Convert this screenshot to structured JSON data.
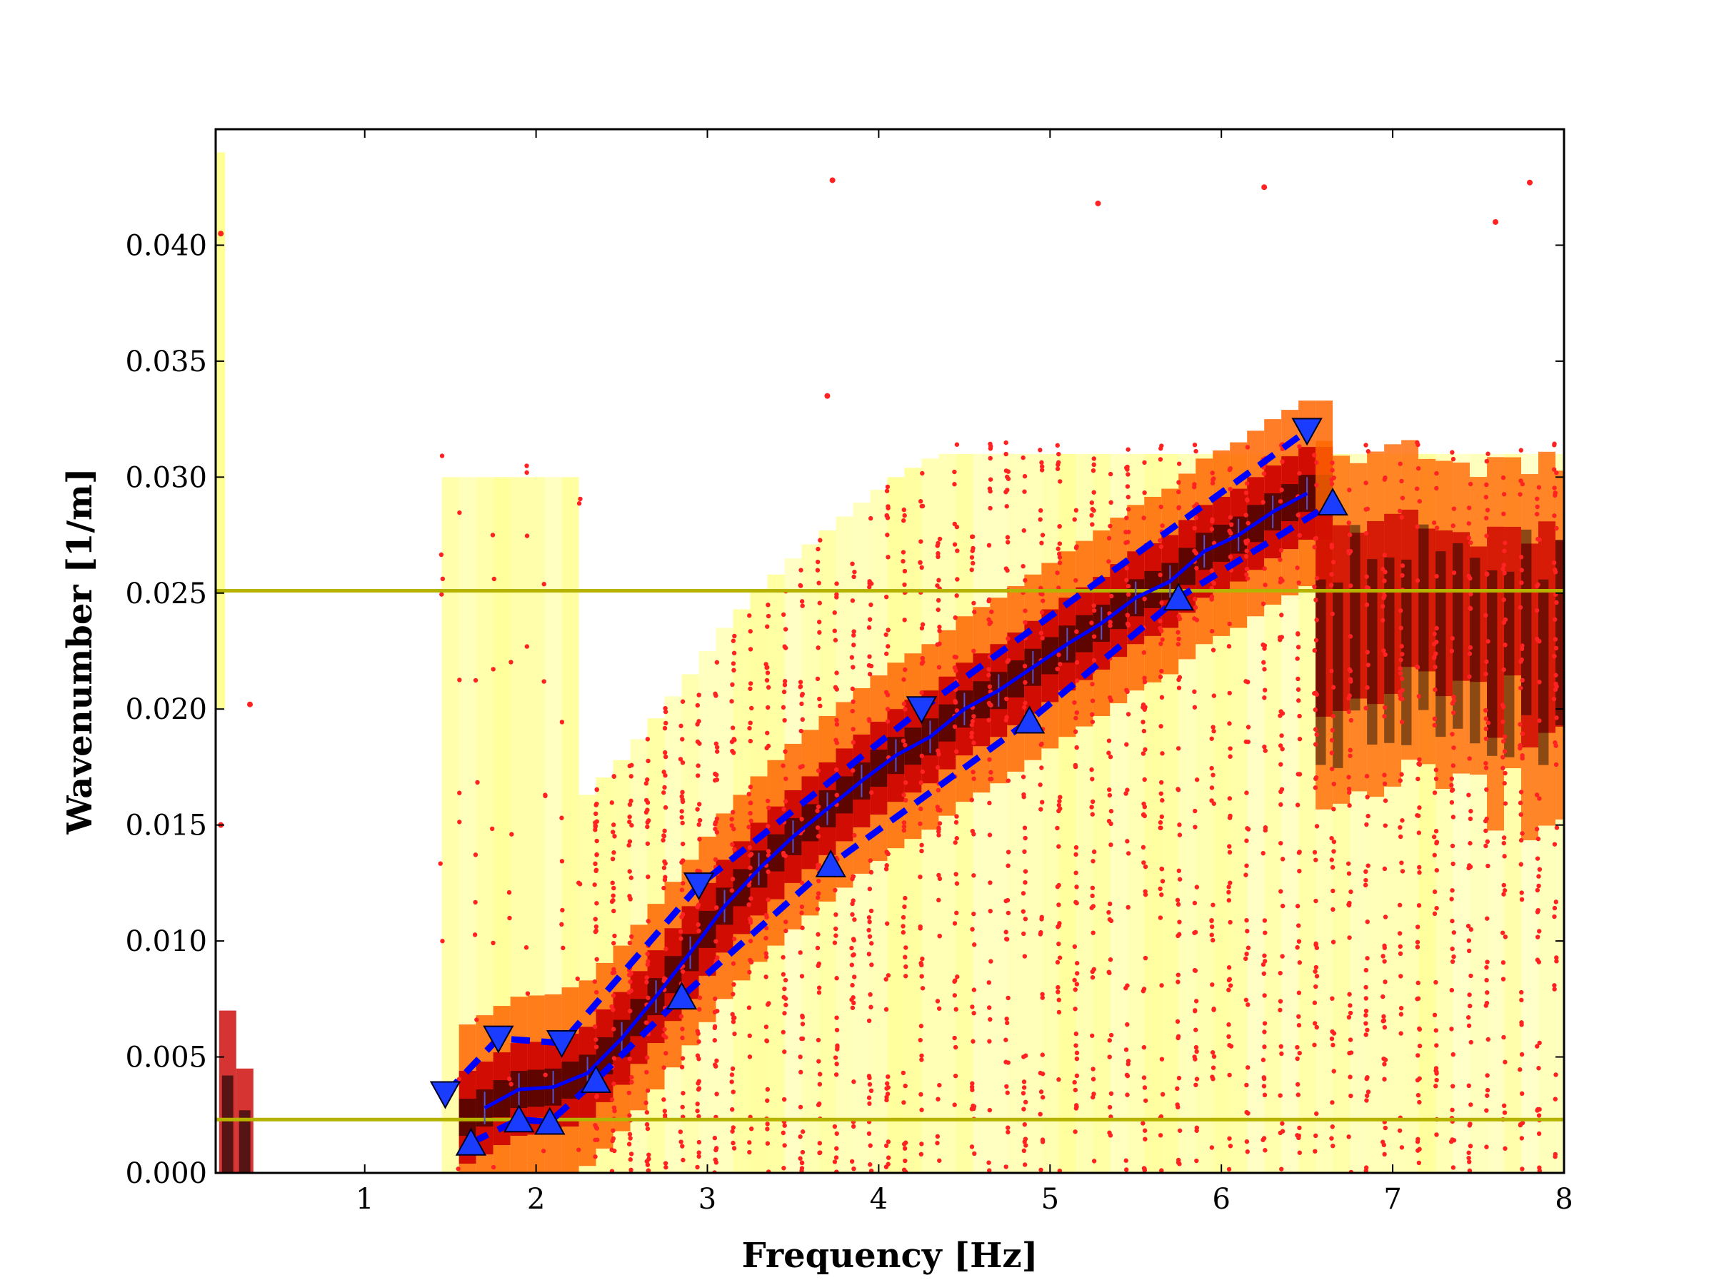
{
  "chart_data": {
    "type": "scatter",
    "title": "",
    "xlabel": "Frequency [Hz]",
    "ylabel": "Wavenumber [1/m]",
    "xlim": [
      0.13,
      8
    ],
    "ylim": [
      0,
      0.045
    ],
    "xticks": [
      {
        "value": 1,
        "label": "1"
      },
      {
        "value": 2,
        "label": "2"
      },
      {
        "value": 3,
        "label": "3"
      },
      {
        "value": 4,
        "label": "4"
      },
      {
        "value": 5,
        "label": "5"
      },
      {
        "value": 6,
        "label": "6"
      },
      {
        "value": 7,
        "label": "7"
      },
      {
        "value": 8,
        "label": "8"
      }
    ],
    "yticks": [
      {
        "value": 0.0,
        "label": "0.000"
      },
      {
        "value": 0.005,
        "label": "0.005"
      },
      {
        "value": 0.01,
        "label": "0.010"
      },
      {
        "value": 0.015,
        "label": "0.015"
      },
      {
        "value": 0.02,
        "label": "0.020"
      },
      {
        "value": 0.025,
        "label": "0.025"
      },
      {
        "value": 0.03,
        "label": "0.030"
      },
      {
        "value": 0.035,
        "label": "0.035"
      },
      {
        "value": 0.04,
        "label": "0.040"
      }
    ],
    "grid": false,
    "colors": {
      "heatmap_low": "#ffff66",
      "heatmap_mid": "#ff6600",
      "heatmap_high": "#cc0000",
      "heatmap_peak": "#000000",
      "scatter": "#ff2222",
      "curve": "#0000ff",
      "marker_fill": "#1a3cff",
      "limit_lines": "#b5b300"
    },
    "heatmap": {
      "freq_step": 0.1,
      "band_tracks": [
        {
          "x_from": 1.4,
          "x_to": 6.6,
          "peak": "dispersion_curve",
          "width": 0.0035
        }
      ],
      "high_freq_blob": {
        "x": [
          6.6,
          8
        ],
        "y": [
          0.014,
          0.032
        ]
      }
    },
    "limit_lines": [
      0.0023,
      0.0251
    ],
    "dispersion_curve": {
      "x": [
        1.7,
        1.9,
        2.1,
        2.3,
        2.5,
        2.7,
        2.9,
        3.1,
        3.3,
        3.5,
        3.7,
        3.9,
        4.1,
        4.3,
        4.5,
        4.7,
        4.9,
        5.1,
        5.3,
        5.5,
        5.7,
        5.9,
        6.1,
        6.3,
        6.5
      ],
      "y": [
        0.0028,
        0.0036,
        0.0037,
        0.0043,
        0.0058,
        0.0076,
        0.0095,
        0.0115,
        0.0131,
        0.0145,
        0.0157,
        0.0169,
        0.018,
        0.0188,
        0.02,
        0.0208,
        0.0218,
        0.0228,
        0.0237,
        0.0248,
        0.0255,
        0.0268,
        0.0275,
        0.0285,
        0.0293
      ]
    },
    "upper_bound": {
      "markers": [
        {
          "x": 1.47,
          "y": 0.0034
        },
        {
          "x": 1.78,
          "y": 0.0058
        },
        {
          "x": 2.15,
          "y": 0.0056
        },
        {
          "x": 2.95,
          "y": 0.0124
        },
        {
          "x": 4.25,
          "y": 0.02
        },
        {
          "x": 6.5,
          "y": 0.032
        }
      ]
    },
    "lower_bound": {
      "markers": [
        {
          "x": 1.62,
          "y": 0.0013
        },
        {
          "x": 1.9,
          "y": 0.0023
        },
        {
          "x": 2.08,
          "y": 0.0022
        },
        {
          "x": 2.35,
          "y": 0.004
        },
        {
          "x": 2.85,
          "y": 0.0076
        },
        {
          "x": 3.72,
          "y": 0.0133
        },
        {
          "x": 4.88,
          "y": 0.0195
        },
        {
          "x": 5.75,
          "y": 0.0248
        },
        {
          "x": 6.65,
          "y": 0.0289
        }
      ]
    },
    "outliers": [
      {
        "x": 0.16,
        "y": 0.0405
      },
      {
        "x": 0.33,
        "y": 0.0202
      },
      {
        "x": 0.16,
        "y": 0.015
      },
      {
        "x": 3.73,
        "y": 0.0428
      },
      {
        "x": 5.28,
        "y": 0.0418
      },
      {
        "x": 6.25,
        "y": 0.0425
      },
      {
        "x": 7.6,
        "y": 0.041
      },
      {
        "x": 7.8,
        "y": 0.0427
      },
      {
        "x": 3.7,
        "y": 0.0335
      }
    ]
  }
}
